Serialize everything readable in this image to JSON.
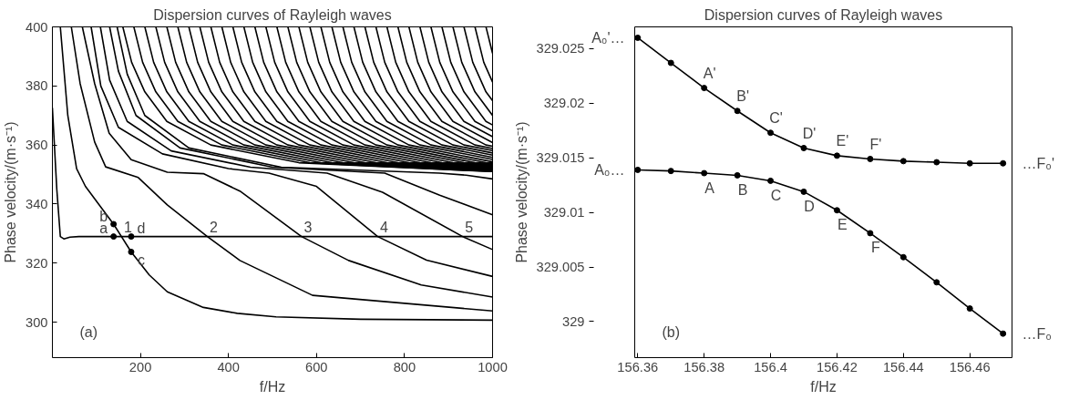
{
  "chart_data": [
    {
      "type": "line",
      "title": "Dispersion curves of Rayleigh waves",
      "xlabel": "f/Hz",
      "ylabel": "Phase velocity/(m·s⁻¹)",
      "xlim": [
        0,
        1000
      ],
      "ylim": [
        288,
        400
      ],
      "xticks": [
        200,
        400,
        600,
        800,
        1000
      ],
      "yticks": [
        300,
        320,
        340,
        360,
        380,
        400
      ],
      "grid": false,
      "marker": "none",
      "line_style": "solid",
      "series": [
        {
          "color": "#000000",
          "x": [
            0,
            10,
            18,
            26,
            40,
            60,
            1000
          ],
          "values": [
            372.6,
            345,
            329,
            328.2,
            328.8,
            329,
            329
          ]
        },
        {
          "color": "#000000",
          "x": [
            18,
            35,
            55,
            75,
            110,
            139,
            179,
            220,
            261,
            343,
            420,
            508,
            700,
            1000
          ],
          "values": [
            400,
            370,
            352,
            346,
            339,
            333.2,
            323.8,
            316,
            310.3,
            305,
            303,
            301.8,
            301,
            300.7
          ]
        },
        {
          "color": "#000000",
          "x": [
            43,
            63,
            96,
            121,
            195,
            261,
            352,
            426,
            591,
            1000
          ],
          "values": [
            400,
            380.8,
            361,
            352.6,
            349,
            339.7,
            329,
            320.9,
            309.1,
            303.8
          ]
        },
        {
          "color": "#000000",
          "x": [
            68,
            96,
            129,
            179,
            261,
            343,
            426,
            566,
            673,
            838,
            1000
          ],
          "values": [
            400,
            380.8,
            364,
            355,
            350.8,
            350.3,
            344.4,
            329,
            320.9,
            312.6,
            308.5
          ]
        },
        {
          "color": "#000000",
          "x": [
            88,
            110,
            150,
            250,
            400,
            492,
            600,
            739,
            850,
            1000
          ],
          "values": [
            400,
            380,
            366,
            357,
            352,
            350.5,
            346,
            329,
            321,
            315.5
          ]
        },
        {
          "color": "#000000",
          "x": [
            109,
            130,
            170,
            270,
            450,
            624,
            750,
            932,
            1000
          ],
          "values": [
            400,
            382,
            368,
            358,
            352.5,
            350.5,
            344,
            329,
            324.6
          ]
        },
        {
          "color": "#000000",
          "x": [
            130,
            150,
            190,
            290,
            500,
            755,
            880,
            1000
          ],
          "values": [
            400,
            385,
            370,
            359,
            352.5,
            350.5,
            343,
            336.4
          ]
        },
        {
          "color": "#000000",
          "x": [
            147,
            170,
            210,
            310,
            520,
            879,
            940,
            1000
          ],
          "values": [
            400,
            384,
            370,
            359,
            352.5,
            350.5,
            349.8,
            348.5
          ]
        },
        {
          "color": "#000000",
          "x": [
            160,
            180,
            210,
            260,
            360,
            560,
            1000
          ],
          "values": [
            400,
            388,
            378,
            368,
            360,
            354,
            351
          ]
        },
        {
          "color": "#000000",
          "x": [
            185,
            205,
            235,
            285,
            385,
            585,
            1000
          ],
          "values": [
            400,
            388,
            378,
            368,
            360,
            354,
            351
          ]
        },
        {
          "color": "#000000",
          "x": [
            210,
            230,
            260,
            310,
            410,
            610,
            1000
          ],
          "values": [
            400,
            388,
            378,
            368,
            360,
            354,
            351.1
          ]
        },
        {
          "color": "#000000",
          "x": [
            235,
            255,
            285,
            335,
            435,
            635,
            1000
          ],
          "values": [
            400,
            388,
            378,
            368,
            360,
            354,
            351.3
          ]
        },
        {
          "color": "#000000",
          "x": [
            260,
            280,
            310,
            360,
            460,
            660,
            1000
          ],
          "values": [
            400,
            388,
            378,
            368,
            360,
            354,
            351.5
          ]
        },
        {
          "color": "#000000",
          "x": [
            285,
            305,
            335,
            385,
            485,
            685,
            1000
          ],
          "values": [
            400,
            388,
            378,
            368,
            360,
            354,
            351.6
          ]
        },
        {
          "color": "#000000",
          "x": [
            310,
            330,
            360,
            410,
            510,
            710,
            1000
          ],
          "values": [
            400,
            388,
            378,
            368,
            360,
            354,
            351.8
          ]
        },
        {
          "color": "#000000",
          "x": [
            335,
            355,
            385,
            435,
            535,
            735,
            1000
          ],
          "values": [
            400,
            388,
            378,
            368,
            360,
            354,
            352
          ]
        },
        {
          "color": "#000000",
          "x": [
            360,
            380,
            410,
            460,
            560,
            760,
            1000
          ],
          "values": [
            400,
            388,
            378,
            368,
            360,
            354,
            352.2
          ]
        },
        {
          "color": "#000000",
          "x": [
            385,
            405,
            435,
            485,
            585,
            785,
            1000
          ],
          "values": [
            400,
            388,
            378,
            368,
            360,
            354,
            352.4
          ]
        },
        {
          "color": "#000000",
          "x": [
            410,
            430,
            460,
            510,
            610,
            810,
            1000
          ],
          "values": [
            400,
            388,
            378,
            368,
            360,
            354,
            352.6
          ]
        },
        {
          "color": "#000000",
          "x": [
            435,
            455,
            485,
            535,
            635,
            835,
            1000
          ],
          "values": [
            400,
            388,
            378,
            368,
            360,
            354,
            352.8
          ]
        },
        {
          "color": "#000000",
          "x": [
            460,
            480,
            510,
            560,
            660,
            860,
            1000
          ],
          "values": [
            400,
            388,
            378,
            368,
            360,
            354,
            353
          ]
        },
        {
          "color": "#000000",
          "x": [
            485,
            505,
            535,
            585,
            685,
            885,
            1000
          ],
          "values": [
            400,
            388,
            378,
            368,
            360,
            354,
            353.1
          ]
        },
        {
          "color": "#000000",
          "x": [
            510,
            530,
            560,
            610,
            710,
            910,
            1000
          ],
          "values": [
            400,
            388,
            378,
            368,
            360,
            354,
            353.3
          ]
        },
        {
          "color": "#000000",
          "x": [
            535,
            555,
            585,
            635,
            735,
            935,
            1000
          ],
          "values": [
            400,
            388,
            378,
            368,
            360,
            354,
            353.5
          ]
        },
        {
          "color": "#000000",
          "x": [
            560,
            580,
            610,
            660,
            760,
            960,
            1000
          ],
          "values": [
            400,
            388,
            378,
            368,
            360,
            354,
            353.7
          ]
        },
        {
          "color": "#000000",
          "x": [
            585,
            605,
            635,
            685,
            785,
            985,
            1000
          ],
          "values": [
            400,
            388,
            378,
            368,
            360,
            354,
            353.9
          ]
        },
        {
          "color": "#000000",
          "x": [
            610,
            630,
            660,
            710,
            810,
            1000
          ],
          "values": [
            400,
            388,
            378,
            368,
            360,
            354.3
          ]
        },
        {
          "color": "#000000",
          "x": [
            635,
            655,
            685,
            735,
            835,
            1000
          ],
          "values": [
            400,
            388,
            378,
            368,
            360,
            355.1
          ]
        },
        {
          "color": "#000000",
          "x": [
            660,
            680,
            710,
            760,
            860,
            1000
          ],
          "values": [
            400,
            388,
            378,
            368,
            360,
            355.8
          ]
        },
        {
          "color": "#000000",
          "x": [
            685,
            705,
            735,
            785,
            885,
            1000
          ],
          "values": [
            400,
            388,
            378,
            368,
            360,
            356.6
          ]
        },
        {
          "color": "#000000",
          "x": [
            710,
            730,
            760,
            810,
            910,
            1000
          ],
          "values": [
            400,
            388,
            378,
            368,
            360,
            357.3
          ]
        },
        {
          "color": "#000000",
          "x": [
            735,
            755,
            785,
            835,
            935,
            1000
          ],
          "values": [
            400,
            388,
            378,
            368,
            360,
            358.1
          ]
        },
        {
          "color": "#000000",
          "x": [
            760,
            780,
            810,
            860,
            960,
            1000
          ],
          "values": [
            400,
            388,
            378,
            368,
            360,
            358.8
          ]
        },
        {
          "color": "#000000",
          "x": [
            785,
            805,
            835,
            885,
            985,
            1000
          ],
          "values": [
            400,
            388,
            378,
            368,
            360,
            359.6
          ]
        },
        {
          "color": "#000000",
          "x": [
            810,
            830,
            860,
            910,
            1000
          ],
          "values": [
            400,
            388,
            378,
            368,
            360.8
          ]
        },
        {
          "color": "#000000",
          "x": [
            835,
            855,
            885,
            935,
            1000
          ],
          "values": [
            400,
            388,
            378,
            368,
            362.8
          ]
        },
        {
          "color": "#000000",
          "x": [
            860,
            880,
            910,
            960,
            1000
          ],
          "values": [
            400,
            388,
            378,
            368,
            364.8
          ]
        },
        {
          "color": "#000000",
          "x": [
            885,
            905,
            935,
            985,
            1000
          ],
          "values": [
            400,
            388,
            378,
            368,
            366.8
          ]
        },
        {
          "color": "#000000",
          "x": [
            910,
            930,
            960,
            1000
          ],
          "values": [
            400,
            388,
            378,
            370
          ]
        },
        {
          "color": "#000000",
          "x": [
            935,
            955,
            985,
            1000
          ],
          "values": [
            400,
            388,
            378,
            375
          ]
        },
        {
          "color": "#000000",
          "x": [
            960,
            980,
            1000
          ],
          "values": [
            400,
            388,
            381.3
          ]
        },
        {
          "color": "#000000",
          "x": [
            985,
            1000
          ],
          "values": [
            400,
            391
          ]
        },
        {
          "type": "scatter",
          "marker": "circle",
          "color": "#000000",
          "x": [
            139,
            139,
            179,
            179
          ],
          "values": [
            329,
            333.2,
            329,
            323.8
          ]
        }
      ],
      "annotations": [
        "(a)",
        {
          "text": "a",
          "x": 139,
          "y": 329
        },
        {
          "text": "b",
          "x": 139,
          "y": 333.2
        },
        {
          "text": "c",
          "x": 179,
          "y": 323.8
        },
        {
          "text": "d",
          "x": 179,
          "y": 329
        },
        {
          "text": "1",
          "x": 157,
          "y": 329
        },
        {
          "text": "2",
          "x": 352,
          "y": 329
        },
        {
          "text": "3",
          "x": 566,
          "y": 329
        },
        {
          "text": "4",
          "x": 739,
          "y": 329
        },
        {
          "text": "5",
          "x": 932,
          "y": 329
        }
      ]
    },
    {
      "type": "line",
      "title": "Dispersion curves of Rayleigh waves",
      "xlabel": "f/Hz",
      "ylabel": "Phase velocity/(m·s⁻¹)",
      "xlim": [
        156.3591,
        156.4727
      ],
      "ylim": [
        328.9967,
        329.027
      ],
      "xticks": [
        156.36,
        156.38,
        156.4,
        156.42,
        156.44,
        156.46
      ],
      "yticks": [
        329,
        329.005,
        329.01,
        329.015,
        329.02,
        329.025
      ],
      "grid": false,
      "marker": "circle",
      "line_style": "solid",
      "series": [
        {
          "color": "#000000",
          "x": [
            156.36,
            156.37,
            156.38,
            156.39,
            156.4,
            156.41,
            156.42,
            156.43,
            156.44,
            156.45,
            156.46,
            156.47
          ],
          "values": [
            329.026,
            329.0237,
            329.0214,
            329.0193,
            329.0173,
            329.0159,
            329.0152,
            329.0149,
            329.0147,
            329.0146,
            329.0145,
            329.0145
          ]
        },
        {
          "color": "#000000",
          "x": [
            156.36,
            156.37,
            156.38,
            156.39,
            156.4,
            156.41,
            156.42,
            156.43,
            156.44,
            156.45,
            156.46,
            156.47
          ],
          "values": [
            329.0139,
            329.0138,
            329.0136,
            329.0134,
            329.0129,
            329.0119,
            329.0102,
            329.0081,
            329.0059,
            329.0036,
            329.0012,
            328.9989
          ]
        }
      ],
      "annotations": [
        "(b)",
        {
          "text": "A'",
          "x": 156.38,
          "y": 329.0214
        },
        {
          "text": "B'",
          "x": 156.39,
          "y": 329.0193
        },
        {
          "text": "C'",
          "x": 156.4,
          "y": 329.0173
        },
        {
          "text": "D'",
          "x": 156.41,
          "y": 329.0159
        },
        {
          "text": "E'",
          "x": 156.42,
          "y": 329.0152
        },
        {
          "text": "F'",
          "x": 156.43,
          "y": 329.0149
        },
        {
          "text": "A",
          "x": 156.38,
          "y": 329.0136
        },
        {
          "text": "B",
          "x": 156.39,
          "y": 329.0134
        },
        {
          "text": "C",
          "x": 156.4,
          "y": 329.0129
        },
        {
          "text": "D",
          "x": 156.41,
          "y": 329.0119
        },
        {
          "text": "E",
          "x": 156.42,
          "y": 329.0102
        },
        {
          "text": "F",
          "x": 156.43,
          "y": 329.0081
        },
        {
          "text": "A₀'…",
          "x": 156.36,
          "y": 329.026
        },
        {
          "text": "A₀…",
          "x": 156.36,
          "y": 329.0139
        },
        {
          "text": "…F₀'",
          "x": 156.47,
          "y": 329.0145
        },
        {
          "text": "…F₀",
          "x": 156.47,
          "y": 328.9989
        }
      ]
    }
  ]
}
